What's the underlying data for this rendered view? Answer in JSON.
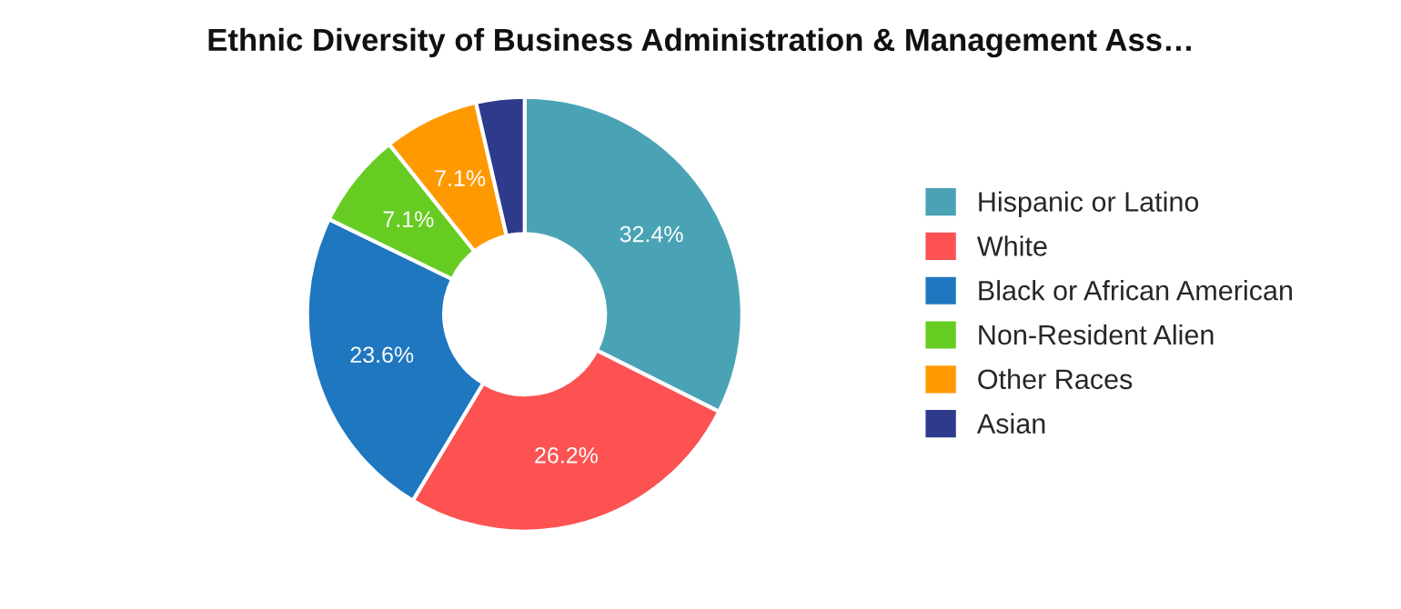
{
  "chart_data": {
    "type": "donut",
    "title": "Ethnic Diversity of Business Administration & Management Ass…",
    "categories": [
      "Hispanic or Latino",
      "White",
      "Black or African American",
      "Non-Resident Alien",
      "Other Races",
      "Asian"
    ],
    "values": [
      32.4,
      26.2,
      23.6,
      7.1,
      7.1,
      3.6
    ],
    "colors": [
      "#4aa3b5",
      "#fc5252",
      "#1f77c0",
      "#66cc22",
      "#ff9900",
      "#2e3a8c"
    ],
    "value_labels": [
      "32.4%",
      "26.2%",
      "23.6%",
      "7.1%",
      "7.1%",
      null
    ],
    "legend": "right"
  }
}
